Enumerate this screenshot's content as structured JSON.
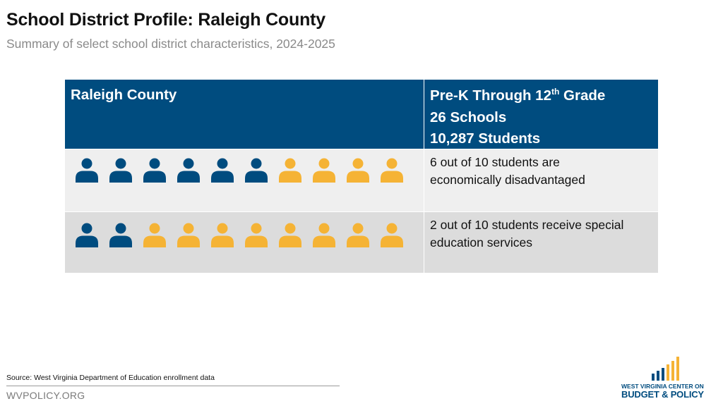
{
  "header": {
    "title": "School District Profile: Raleigh County",
    "subtitle": "Summary of select school district characteristics, 2024-2025"
  },
  "table": {
    "county": "Raleigh County",
    "grades_prefix": "Pre-K Through 12",
    "grades_sup": "th",
    "grades_suffix": " Grade",
    "schools": "26 Schools",
    "students": "10,287 Students",
    "rows": [
      {
        "text_line1": "6 out of 10 students are",
        "text_line2": "economically disadvantaged",
        "highlighted": 6,
        "total": 10
      },
      {
        "text_line1": "2 out of 10 students receive special",
        "text_line2": "education services",
        "highlighted": 2,
        "total": 10
      }
    ]
  },
  "colors": {
    "header_blue": "#004c7f",
    "person_blue": "#004c7f",
    "person_gold": "#f5b335",
    "row1_bg": "#efefef",
    "row2_bg": "#dcdcdc"
  },
  "footer": {
    "source": "Source: West Virginia Department of Education enrollment data",
    "site": "WVPOLICY.ORG"
  },
  "logo": {
    "line1": "WEST VIRGINIA CENTER ON",
    "line2": "BUDGET & POLICY"
  },
  "icons": {
    "person": "person-icon",
    "logo_bars": "bar-chart-logo-icon"
  }
}
